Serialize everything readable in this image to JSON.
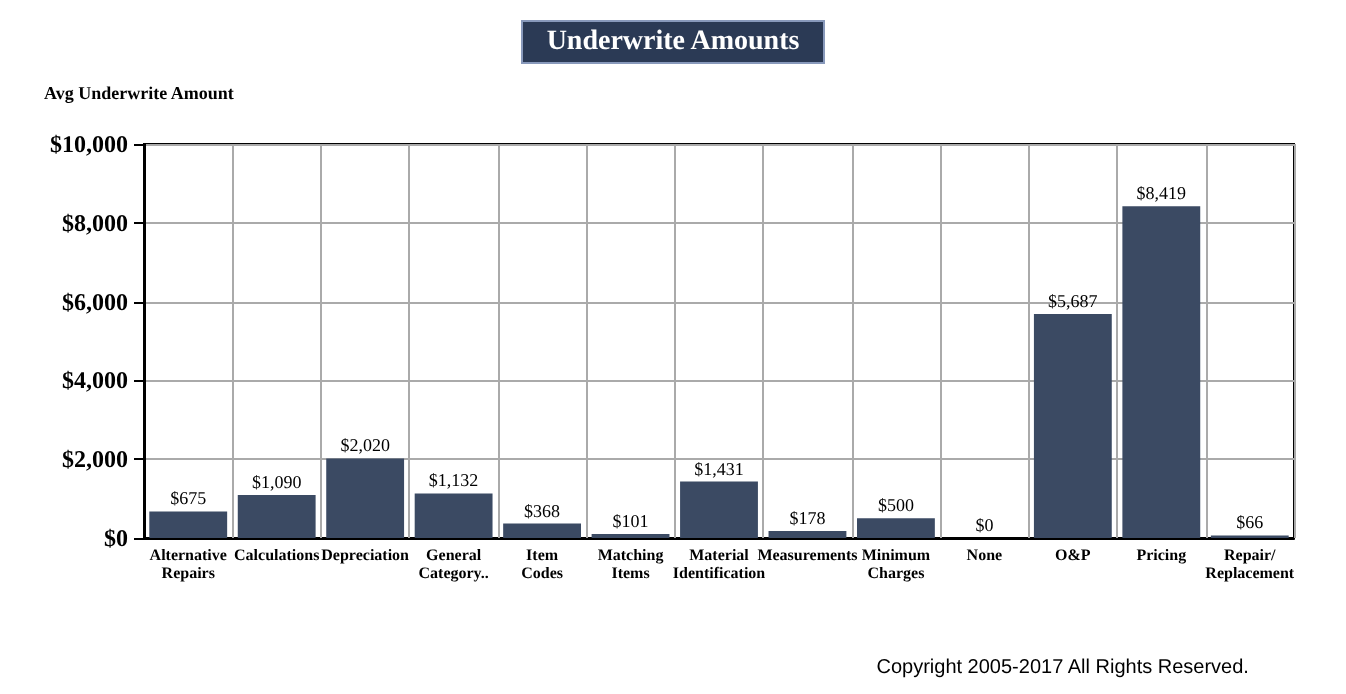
{
  "chart_data": {
    "type": "bar",
    "title": "Underwrite Amounts",
    "ylabel": "Avg Underwrite Amount",
    "categories": [
      "Alternative Repairs",
      "Calculations",
      "Depreciation",
      "General Category..",
      "Item Codes",
      "Matching Items",
      "Material Identification",
      "Measurements",
      "Minimum Charges",
      "None",
      "O&P",
      "Pricing",
      "Repair/ Replacement"
    ],
    "series": [
      {
        "color": "#3b4a63",
        "values": [
          675,
          1090,
          2020,
          1132,
          368,
          101,
          1431,
          178,
          500,
          0,
          5687,
          8419,
          66
        ],
        "value_labels": [
          "$675",
          "$1,090",
          "$2,020",
          "$1,132",
          "$368",
          "$101",
          "$1,431",
          "$178",
          "$500",
          "$0",
          "$5,687",
          "$8,419",
          "$66"
        ]
      }
    ],
    "ylim": [
      0,
      10000
    ],
    "yticks": [
      {
        "value": 0,
        "label": "$0"
      },
      {
        "value": 2000,
        "label": "$2,000"
      },
      {
        "value": 4000,
        "label": "$4,000"
      },
      {
        "value": 6000,
        "label": "$6,000"
      },
      {
        "value": 8000,
        "label": "$8,000"
      },
      {
        "value": 10000,
        "label": "$10,000"
      }
    ],
    "grid": true,
    "annotations": [
      "Copyright 2005-2017 All Rights Reserved."
    ]
  }
}
